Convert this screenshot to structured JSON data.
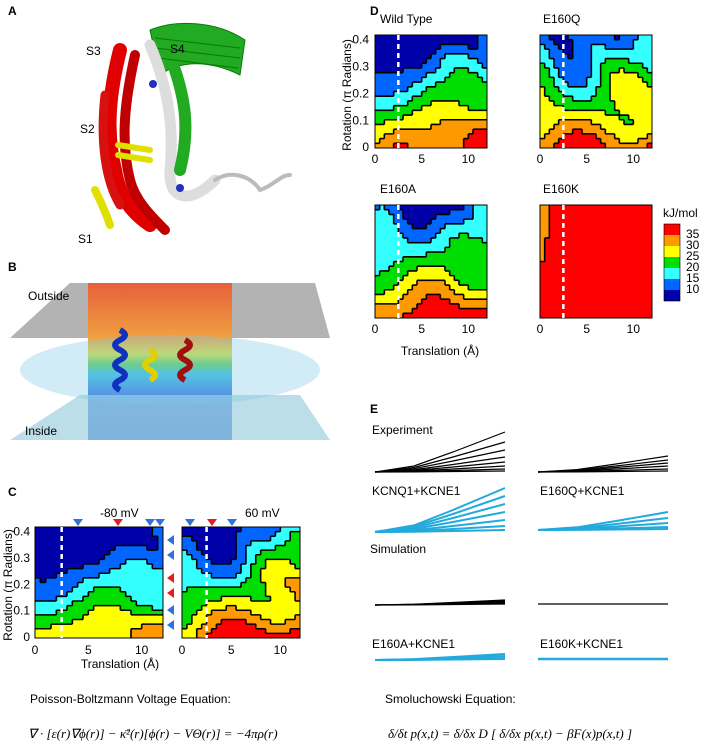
{
  "panel_a": {
    "letter": "A",
    "labels": [
      "S3",
      "S4",
      "S2",
      "S1"
    ]
  },
  "panel_b": {
    "letter": "B",
    "outside": "Outside",
    "inside": "Inside"
  },
  "panel_c": {
    "letter": "C",
    "plots": [
      {
        "title": "-80 mV"
      },
      {
        "title": "60 mV"
      }
    ],
    "y_label": "Rotation (π Radians)",
    "x_label": "Translation (Å)",
    "y_ticks": [
      "0.4",
      "0.3",
      "0.2",
      "0.1",
      "0"
    ],
    "x_ticks": [
      "0",
      "5",
      "10"
    ],
    "equation_title": "Poisson-Boltzmann Voltage Equation:",
    "equation": "∇ · [ε(r)∇ϕ(r)] − κ̄²(r)[ϕ(r) − VΘ(r)] = −4πρ(r)"
  },
  "panel_d": {
    "letter": "D",
    "plots": [
      {
        "title": "Wild Type"
      },
      {
        "title": "E160Q"
      },
      {
        "title": "E160A"
      },
      {
        "title": "E160K"
      }
    ],
    "y_label": "Rotation (π Radians)",
    "x_label": "Translation (Å)",
    "y_ticks": [
      "0.4",
      "0.3",
      "0.2",
      "0.1",
      "0"
    ],
    "x_ticks": [
      "0",
      "5",
      "10"
    ],
    "colorbar": {
      "unit": "kJ/mol",
      "ticks": [
        "35",
        "30",
        "25",
        "20",
        "15",
        "10"
      ]
    }
  },
  "panel_e": {
    "letter": "E",
    "experiment": "Experiment",
    "simulation": "Simulation",
    "labels": [
      "KCNQ1+KCNE1",
      "E160Q+KCNE1",
      "E160A+KCNE1",
      "E160K+KCNE1"
    ],
    "equation_title": "Smoluchowski Equation:",
    "equation": "δ/δt p(x,t) = δ/δx D [ δ/δx p(x,t) − βF(x)p(x,t) ]"
  }
}
